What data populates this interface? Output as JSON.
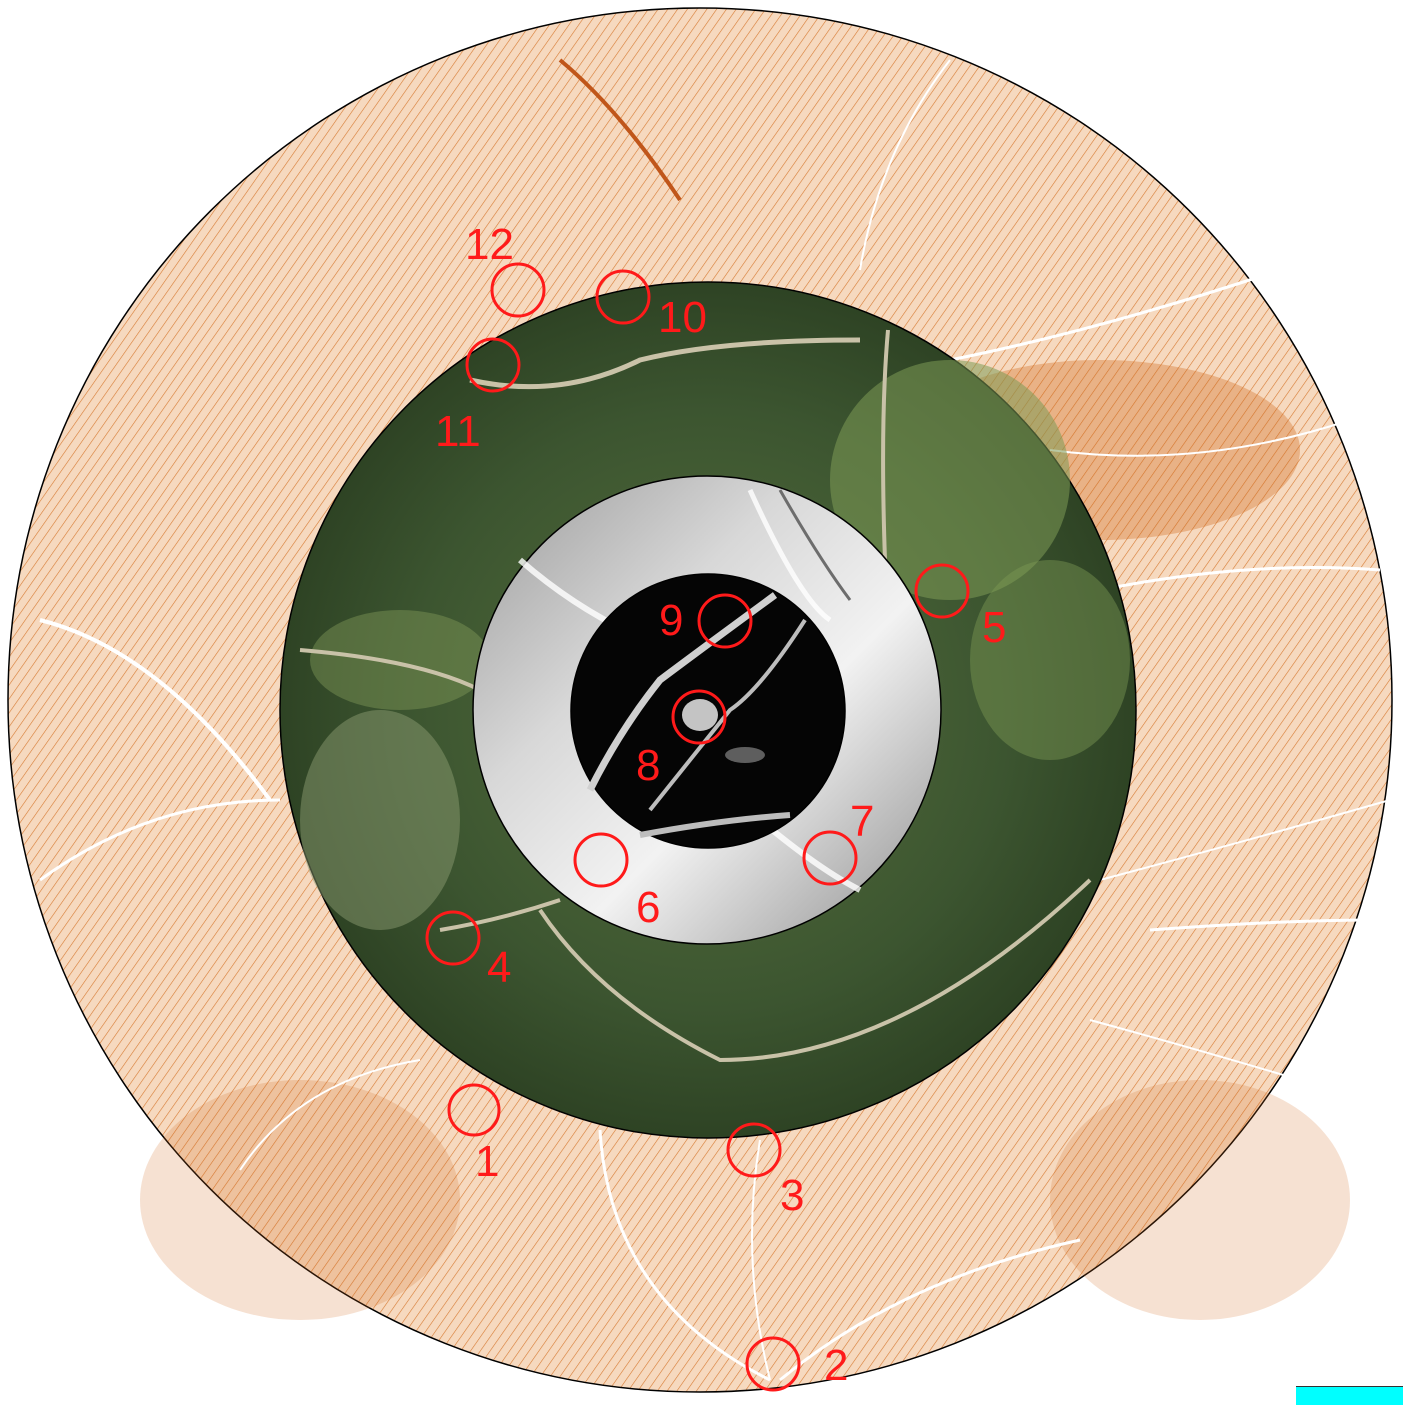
{
  "map": {
    "rings": [
      {
        "id": "contour-ring",
        "kind": "lidar contour lines",
        "color": "#d2691e",
        "background": "#f8dcc4"
      },
      {
        "id": "orthophoto-ring",
        "kind": "aerial orthophoto",
        "color": "#3f5a30"
      },
      {
        "id": "hillshade-ring",
        "kind": "grey hillshade",
        "color": "#bdbdbd"
      },
      {
        "id": "local-relief-disc",
        "kind": "local relief model",
        "color": "#0a0a0a"
      }
    ],
    "markers": [
      {
        "label": "1"
      },
      {
        "label": "2"
      },
      {
        "label": "3"
      },
      {
        "label": "4"
      },
      {
        "label": "5"
      },
      {
        "label": "6"
      },
      {
        "label": "7"
      },
      {
        "label": "8"
      },
      {
        "label": "9"
      },
      {
        "label": "10"
      },
      {
        "label": "11"
      },
      {
        "label": "12"
      }
    ],
    "marker_color": "#ff1a1a",
    "scale_bar_color": "#00ffff"
  }
}
